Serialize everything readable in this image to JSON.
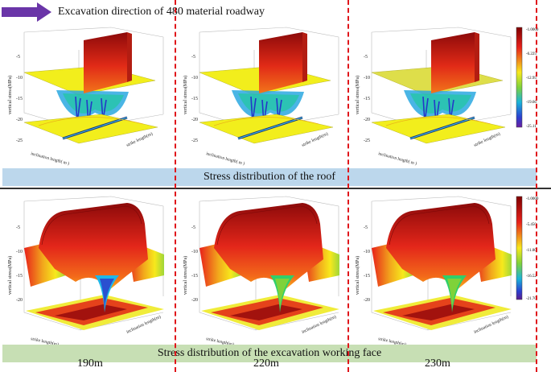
{
  "header": {
    "arrow_color": "#6a35a8",
    "title": "Excavation direction of 480 material roadway"
  },
  "bands": {
    "roof": "Stress distribution of the roof",
    "face": "Stress distribution of the excavation working face"
  },
  "distances": [
    "190m",
    "220m",
    "230m"
  ],
  "roof_panels": {
    "zlabel": "vertical stress(MPa)",
    "xlabel": "inclination length( m )",
    "ylabel": "strike length(m)",
    "zticks": [
      "-5",
      "-10",
      "-15",
      "-20",
      "-25"
    ],
    "colorbar": [
      "-1.0000",
      "-6.225",
      "-12.95",
      "-19.66",
      "-25.11"
    ]
  },
  "face_panels": {
    "zlabel": "vertical stress(MPa)",
    "xlabel": "strike length(m)",
    "ylabel": "inclination length(m)",
    "zticks": [
      "-5",
      "-10",
      "-15",
      "-20"
    ],
    "colorbar": [
      "-1.0000",
      "-5.450",
      "-11.00",
      "-16.52",
      "-21.70"
    ]
  },
  "colors": {
    "divider": "#e0161b",
    "roof_band": "#bcd7ec",
    "face_band": "#c7dfb4"
  }
}
